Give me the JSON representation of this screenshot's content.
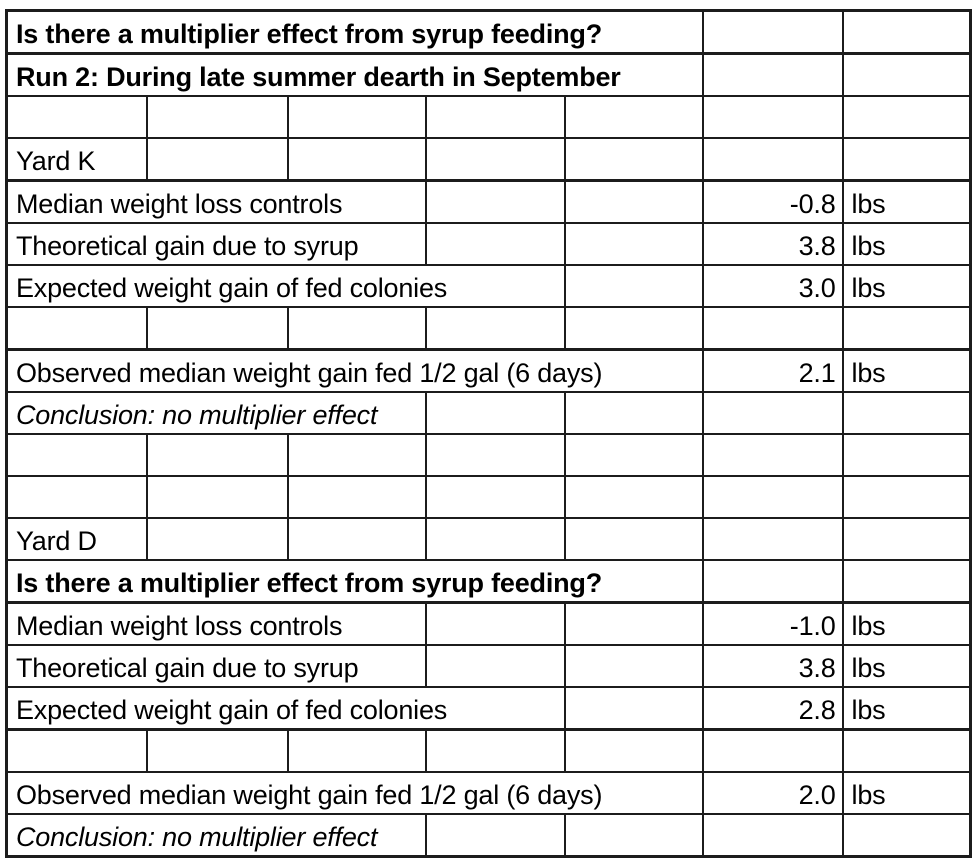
{
  "theme": {
    "background_color": "#ffffff",
    "cell_background_color": "#ffffff",
    "border_color": "#1c1c1c",
    "text_color": "#000000"
  },
  "table": {
    "columns": 7,
    "rows": [
      {
        "name": "title-question-1",
        "cells": [
          {
            "name": "cell-question",
            "text": "Is there a multiplier effect from syrup feeding?",
            "span": 5,
            "bold": true
          },
          {
            "name": "cell-empty"
          },
          {
            "name": "cell-empty"
          }
        ]
      },
      {
        "name": "title-run-label",
        "thick_top": true,
        "cells": [
          {
            "name": "cell-run-label",
            "text": "Run 2: During late summer dearth in September",
            "span": 5,
            "bold": true
          },
          {
            "name": "cell-empty"
          },
          {
            "name": "cell-empty"
          }
        ]
      },
      {
        "name": "spacer-1",
        "cells": [
          {
            "name": "cell-empty"
          },
          {
            "name": "cell-empty"
          },
          {
            "name": "cell-empty"
          },
          {
            "name": "cell-empty"
          },
          {
            "name": "cell-empty"
          },
          {
            "name": "cell-empty"
          },
          {
            "name": "cell-empty"
          }
        ]
      },
      {
        "name": "yard-k-header",
        "cells": [
          {
            "name": "cell-yard-label",
            "text": "Yard K"
          },
          {
            "name": "cell-empty"
          },
          {
            "name": "cell-empty"
          },
          {
            "name": "cell-empty"
          },
          {
            "name": "cell-empty"
          },
          {
            "name": "cell-empty"
          },
          {
            "name": "cell-empty"
          }
        ]
      },
      {
        "name": "median-weight-loss-k",
        "thick_top": true,
        "cells": [
          {
            "name": "cell-metric-label",
            "text": "Median weight loss controls",
            "span": 3
          },
          {
            "name": "cell-empty"
          },
          {
            "name": "cell-empty"
          },
          {
            "name": "cell-value",
            "text": "-0.8",
            "align": "right"
          },
          {
            "name": "cell-unit",
            "text": "lbs"
          }
        ]
      },
      {
        "name": "theoretical-gain-k",
        "cells": [
          {
            "name": "cell-metric-label",
            "text": "Theoretical gain due to syrup",
            "span": 3
          },
          {
            "name": "cell-empty"
          },
          {
            "name": "cell-empty"
          },
          {
            "name": "cell-value",
            "text": "3.8",
            "align": "right"
          },
          {
            "name": "cell-unit",
            "text": "lbs"
          }
        ]
      },
      {
        "name": "expected-gain-k",
        "cells": [
          {
            "name": "cell-metric-label",
            "text": "Expected weight gain of fed colonies",
            "span": 4
          },
          {
            "name": "cell-empty"
          },
          {
            "name": "cell-value",
            "text": "3.0",
            "align": "right"
          },
          {
            "name": "cell-unit",
            "text": "lbs"
          }
        ]
      },
      {
        "name": "spacer-2",
        "cells": [
          {
            "name": "cell-empty"
          },
          {
            "name": "cell-empty"
          },
          {
            "name": "cell-empty"
          },
          {
            "name": "cell-empty"
          },
          {
            "name": "cell-empty"
          },
          {
            "name": "cell-empty"
          },
          {
            "name": "cell-empty"
          }
        ]
      },
      {
        "name": "observed-gain-k",
        "thick_top": true,
        "cells": [
          {
            "name": "cell-metric-label",
            "text": "Observed median weight gain fed 1/2 gal (6 days)",
            "span": 5
          },
          {
            "name": "cell-value",
            "text": "2.1",
            "align": "right"
          },
          {
            "name": "cell-unit",
            "text": "lbs"
          }
        ]
      },
      {
        "name": "conclusion-k",
        "cells": [
          {
            "name": "cell-conclusion",
            "text": "Conclusion: no multiplier effect",
            "span": 3,
            "italic": true
          },
          {
            "name": "cell-empty"
          },
          {
            "name": "cell-empty"
          },
          {
            "name": "cell-empty"
          },
          {
            "name": "cell-empty"
          }
        ]
      },
      {
        "name": "spacer-3",
        "cells": [
          {
            "name": "cell-empty"
          },
          {
            "name": "cell-empty"
          },
          {
            "name": "cell-empty"
          },
          {
            "name": "cell-empty"
          },
          {
            "name": "cell-empty"
          },
          {
            "name": "cell-empty"
          },
          {
            "name": "cell-empty"
          }
        ]
      },
      {
        "name": "spacer-4",
        "cells": [
          {
            "name": "cell-empty"
          },
          {
            "name": "cell-empty"
          },
          {
            "name": "cell-empty"
          },
          {
            "name": "cell-empty"
          },
          {
            "name": "cell-empty"
          },
          {
            "name": "cell-empty"
          },
          {
            "name": "cell-empty"
          }
        ]
      },
      {
        "name": "yard-d-header",
        "cells": [
          {
            "name": "cell-yard-label",
            "text": "Yard D"
          },
          {
            "name": "cell-empty"
          },
          {
            "name": "cell-empty"
          },
          {
            "name": "cell-empty"
          },
          {
            "name": "cell-empty"
          },
          {
            "name": "cell-empty"
          },
          {
            "name": "cell-empty"
          }
        ]
      },
      {
        "name": "title-question-2",
        "cells": [
          {
            "name": "cell-question",
            "text": "Is there a multiplier effect from syrup feeding?",
            "span": 5,
            "bold": true
          },
          {
            "name": "cell-empty"
          },
          {
            "name": "cell-empty"
          }
        ]
      },
      {
        "name": "median-weight-loss-d",
        "thick_top": true,
        "cells": [
          {
            "name": "cell-metric-label",
            "text": "Median weight loss controls",
            "span": 3
          },
          {
            "name": "cell-empty"
          },
          {
            "name": "cell-empty"
          },
          {
            "name": "cell-value",
            "text": "-1.0",
            "align": "right"
          },
          {
            "name": "cell-unit",
            "text": "lbs"
          }
        ]
      },
      {
        "name": "theoretical-gain-d",
        "cells": [
          {
            "name": "cell-metric-label",
            "text": "Theoretical gain due to syrup",
            "span": 3
          },
          {
            "name": "cell-empty"
          },
          {
            "name": "cell-empty"
          },
          {
            "name": "cell-value",
            "text": "3.8",
            "align": "right"
          },
          {
            "name": "cell-unit",
            "text": "lbs"
          }
        ]
      },
      {
        "name": "expected-gain-d",
        "cells": [
          {
            "name": "cell-metric-label",
            "text": "Expected weight gain of fed colonies",
            "span": 4
          },
          {
            "name": "cell-empty"
          },
          {
            "name": "cell-value",
            "text": "2.8",
            "align": "right"
          },
          {
            "name": "cell-unit",
            "text": "lbs"
          }
        ]
      },
      {
        "name": "spacer-5",
        "thick_top": true,
        "cells": [
          {
            "name": "cell-empty"
          },
          {
            "name": "cell-empty"
          },
          {
            "name": "cell-empty"
          },
          {
            "name": "cell-empty"
          },
          {
            "name": "cell-empty"
          },
          {
            "name": "cell-empty"
          },
          {
            "name": "cell-empty"
          }
        ]
      },
      {
        "name": "observed-gain-d",
        "cells": [
          {
            "name": "cell-metric-label",
            "text": "Observed median weight gain fed 1/2 gal (6 days)",
            "span": 5
          },
          {
            "name": "cell-value",
            "text": "2.0",
            "align": "right"
          },
          {
            "name": "cell-unit",
            "text": "lbs"
          }
        ]
      },
      {
        "name": "conclusion-d",
        "cells": [
          {
            "name": "cell-conclusion",
            "text": "Conclusion: no multiplier effect",
            "span": 3,
            "italic": true
          },
          {
            "name": "cell-empty"
          },
          {
            "name": "cell-empty"
          },
          {
            "name": "cell-empty"
          },
          {
            "name": "cell-empty"
          }
        ]
      }
    ]
  }
}
